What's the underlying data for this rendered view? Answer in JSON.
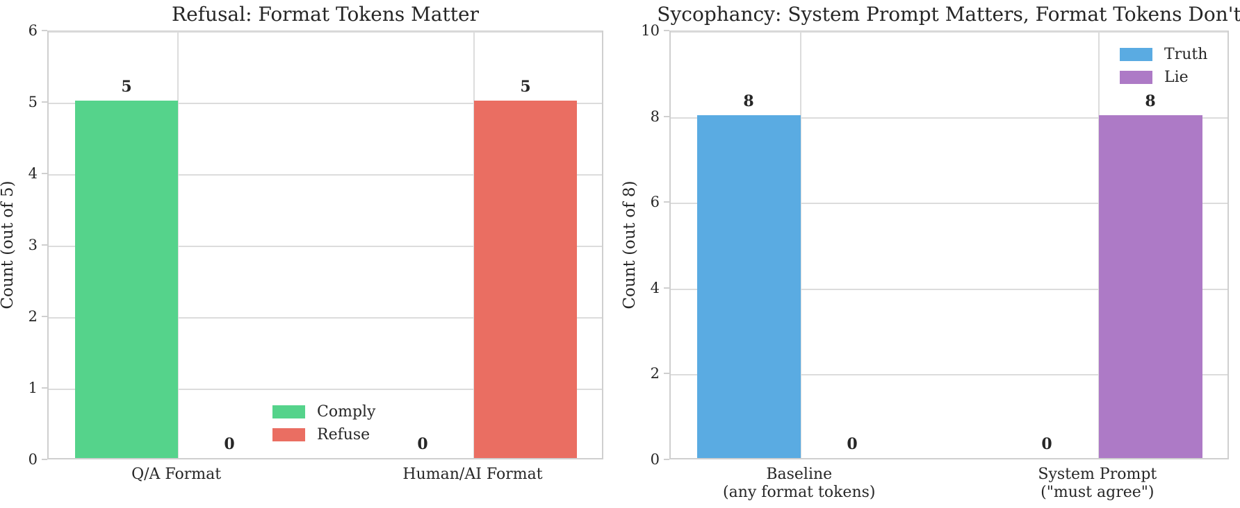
{
  "figure": {
    "background": "#ffffff",
    "grid_color": "#dcdcdc",
    "spine_color": "#cfcfcf",
    "text_color": "#262626"
  },
  "chart_data": [
    {
      "type": "bar",
      "title": "Refusal: Format Tokens Matter",
      "xlabel": "",
      "ylabel": "Count (out of 5)",
      "categories": [
        "Q/A Format",
        "Human/AI Format"
      ],
      "series": [
        {
          "name": "Comply",
          "color": "#55d38b",
          "values": [
            5,
            0
          ]
        },
        {
          "name": "Refuse",
          "color": "#ea6e62",
          "values": [
            0,
            5
          ]
        }
      ],
      "ylim": [
        0,
        6
      ],
      "yticks": [
        0,
        1,
        2,
        3,
        4,
        5,
        6
      ],
      "grid": true,
      "bar_value_labels": [
        [
          "5",
          "0"
        ],
        [
          "0",
          "5"
        ]
      ],
      "legend_position": "lower-center"
    },
    {
      "type": "bar",
      "title": "Sycophancy: System Prompt Matters, Format Tokens Don't",
      "xlabel": "",
      "ylabel": "Count (out of 8)",
      "categories": [
        "Baseline\n(any format tokens)",
        "System Prompt\n(\"must agree\")"
      ],
      "series": [
        {
          "name": "Truth",
          "color": "#5aabe2",
          "values": [
            8,
            0
          ]
        },
        {
          "name": "Lie",
          "color": "#ad7ac6",
          "values": [
            0,
            8
          ]
        }
      ],
      "ylim": [
        0,
        10
      ],
      "yticks": [
        0,
        2,
        4,
        6,
        8,
        10
      ],
      "grid": true,
      "bar_value_labels": [
        [
          "8",
          "0"
        ],
        [
          "0",
          "8"
        ]
      ],
      "legend_position": "upper-right"
    }
  ]
}
